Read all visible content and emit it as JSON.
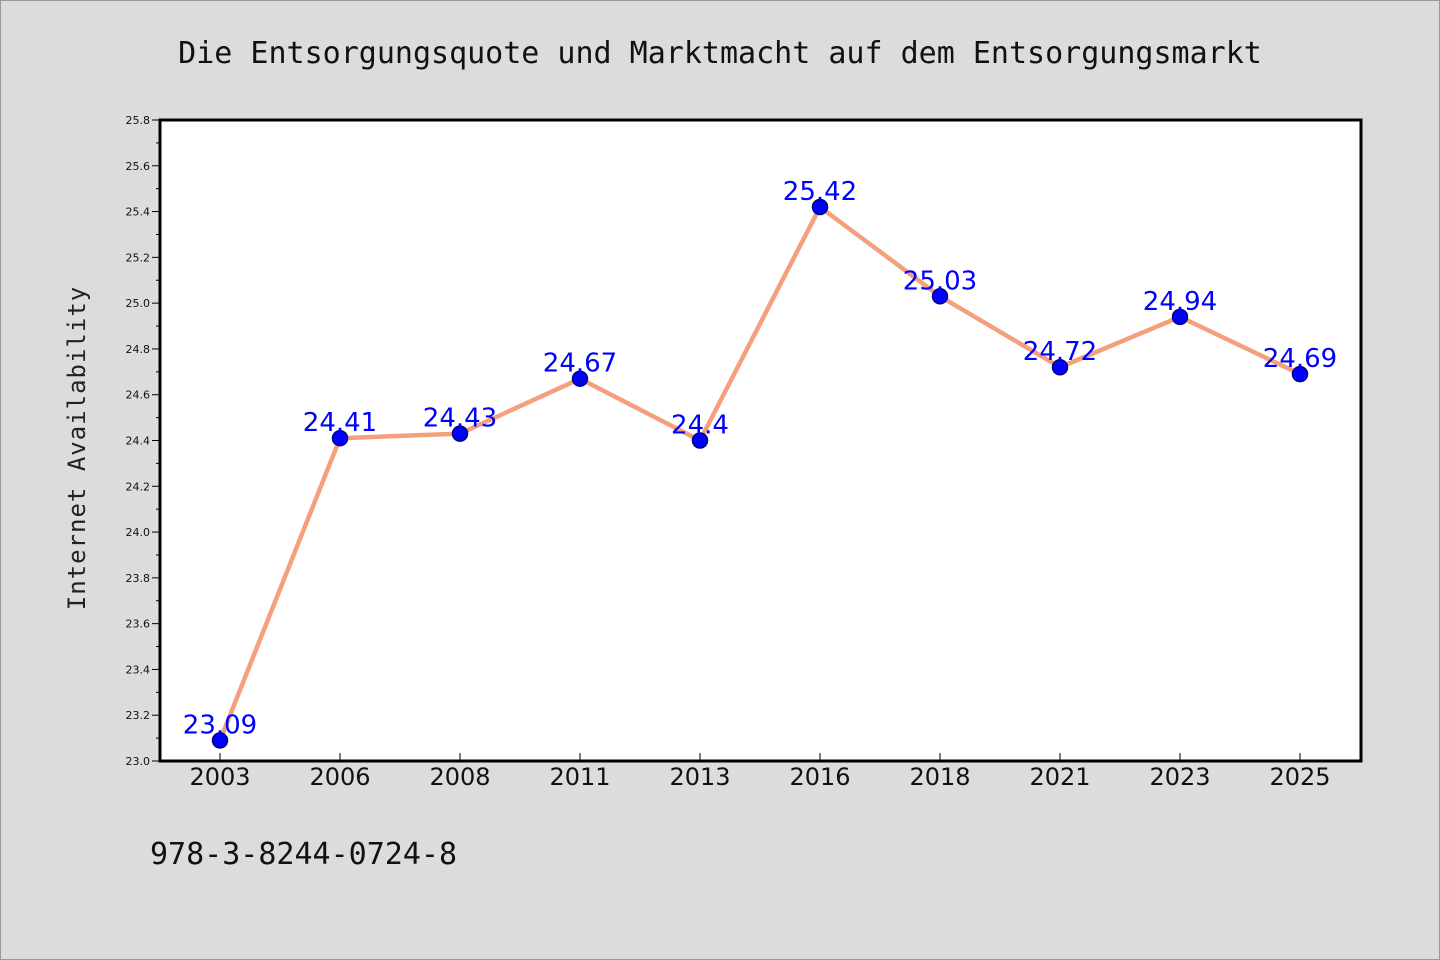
{
  "chart_data": {
    "type": "line",
    "title": "Die Entsorgungsquote und Marktmacht auf dem Entsorgungsmarkt",
    "ylabel": "Internet Availability",
    "xlabel": "",
    "categories": [
      "2003",
      "2006",
      "2008",
      "2011",
      "2013",
      "2016",
      "2018",
      "2021",
      "2023",
      "2025"
    ],
    "series": [
      {
        "values": [
          23.09,
          24.41,
          24.43,
          24.67,
          24.4,
          25.42,
          25.03,
          24.72,
          24.94,
          24.69
        ],
        "labels": [
          "23.09",
          "24.41",
          "24.43",
          "24.67",
          "24.4",
          "25.42",
          "25.03",
          "24.72",
          "24.94",
          "24.69"
        ]
      }
    ],
    "ylim": [
      23.0,
      25.8
    ],
    "yticks": [
      "23.0",
      "23.2",
      "23.4",
      "23.6",
      "23.8",
      "24.0",
      "24.2",
      "24.4",
      "24.6",
      "24.8",
      "25.0",
      "25.2",
      "25.4",
      "25.6",
      "25.8"
    ],
    "grid": false,
    "legend": "none",
    "colors": {
      "line": "#f4a07c",
      "marker": "#0000ff",
      "marker_edge": "#000080",
      "data_label": "#0000ff",
      "background": "#dcdcdc",
      "plot_background": "#ffffff"
    }
  },
  "footnote": "978-3-8244-0724-8"
}
